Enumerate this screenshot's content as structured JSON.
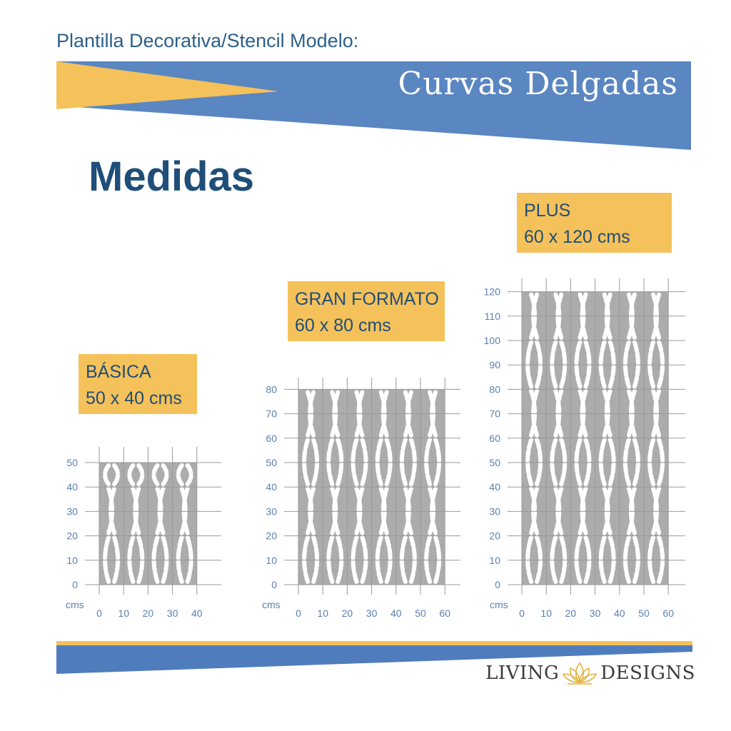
{
  "header": {
    "label": "Plantilla Decorativa/Stencil Modelo:",
    "model_name": "Curvas  Delgadas"
  },
  "heading": "Medidas",
  "colors": {
    "blue": "#5a86c1",
    "yellow": "#f5c15a",
    "navy": "#1f4e79",
    "axis": "#5a7fb0",
    "stencil": "#acacac"
  },
  "sizes": [
    {
      "name": "BÁSICA",
      "dims": "50 x 40 cms",
      "width_cm": 40,
      "height_cm": 50,
      "axis_unit": "cms",
      "x_ticks": [
        "0",
        "10",
        "20",
        "30",
        "40"
      ],
      "y_ticks": [
        "0",
        "10",
        "20",
        "30",
        "40",
        "50"
      ]
    },
    {
      "name": "GRAN FORMATO",
      "dims": "60 x 80 cms",
      "width_cm": 60,
      "height_cm": 80,
      "axis_unit": "cms",
      "x_ticks": [
        "0",
        "10",
        "20",
        "30",
        "40",
        "50",
        "60"
      ],
      "y_ticks": [
        "0",
        "10",
        "20",
        "30",
        "40",
        "50",
        "60",
        "70",
        "80"
      ]
    },
    {
      "name": "PLUS",
      "dims": "60 x 120 cms",
      "width_cm": 60,
      "height_cm": 120,
      "axis_unit": "cms",
      "x_ticks": [
        "0",
        "10",
        "20",
        "30",
        "40",
        "50",
        "60"
      ],
      "y_ticks": [
        "0",
        "10",
        "20",
        "30",
        "40",
        "50",
        "60",
        "70",
        "80",
        "90",
        "100",
        "110",
        "120"
      ]
    }
  ],
  "brand": {
    "left": "LIVING",
    "right": "DESIGNS",
    "icon": "lotus-icon"
  }
}
